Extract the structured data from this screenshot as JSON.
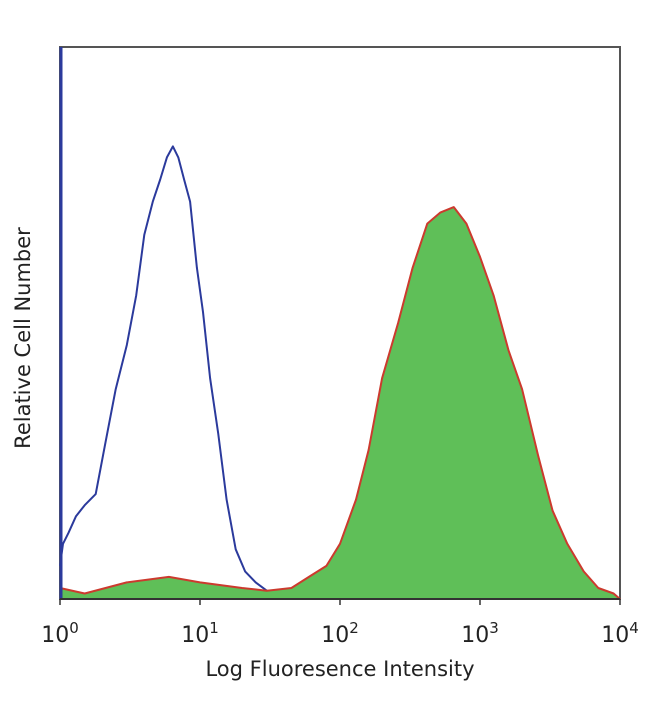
{
  "chart_data": {
    "type": "area",
    "xlabel": "Log Fluoresence Intensity",
    "ylabel": "Relative Cell Number",
    "xscale": "log",
    "xlim": [
      1,
      10000
    ],
    "ylim": [
      0,
      1
    ],
    "x_ticks": [
      {
        "value": 1,
        "base": "10",
        "exp": "0"
      },
      {
        "value": 10,
        "base": "10",
        "exp": "1"
      },
      {
        "value": 100,
        "base": "10",
        "exp": "2"
      },
      {
        "value": 1000,
        "base": "10",
        "exp": "3"
      },
      {
        "value": 10000,
        "base": "10",
        "exp": "4"
      }
    ],
    "grid": false,
    "series": [
      {
        "style": "outline",
        "color": "#2b3a9c",
        "x": [
          1.0,
          1.05,
          1.15,
          1.3,
          1.5,
          1.8,
          2.1,
          2.5,
          3.0,
          3.5,
          4.0,
          4.6,
          5.2,
          5.8,
          6.4,
          7.0,
          7.7,
          8.5,
          9.5,
          10.5,
          11.8,
          13.5,
          15.5,
          18,
          21,
          25,
          30,
          38,
          45
        ],
        "values": [
          0.06,
          0.1,
          0.12,
          0.15,
          0.17,
          0.19,
          0.28,
          0.38,
          0.46,
          0.55,
          0.66,
          0.72,
          0.76,
          0.8,
          0.82,
          0.8,
          0.76,
          0.72,
          0.6,
          0.52,
          0.4,
          0.3,
          0.18,
          0.09,
          0.05,
          0.03,
          0.015,
          0.01,
          0.01
        ]
      },
      {
        "style": "filled",
        "color": "#cc3a2e",
        "fill": "#5fbf58",
        "x": [
          1.0,
          1.5,
          3,
          6,
          10,
          20,
          30,
          45,
          60,
          80,
          100,
          130,
          160,
          200,
          260,
          330,
          420,
          520,
          650,
          800,
          1000,
          1250,
          1600,
          2000,
          2600,
          3300,
          4200,
          5500,
          7000,
          9000,
          10000
        ],
        "values": [
          0.02,
          0.01,
          0.03,
          0.04,
          0.03,
          0.02,
          0.015,
          0.02,
          0.04,
          0.06,
          0.1,
          0.18,
          0.27,
          0.4,
          0.5,
          0.6,
          0.68,
          0.7,
          0.71,
          0.68,
          0.62,
          0.55,
          0.45,
          0.38,
          0.26,
          0.16,
          0.1,
          0.05,
          0.02,
          0.01,
          0.0
        ]
      }
    ]
  }
}
